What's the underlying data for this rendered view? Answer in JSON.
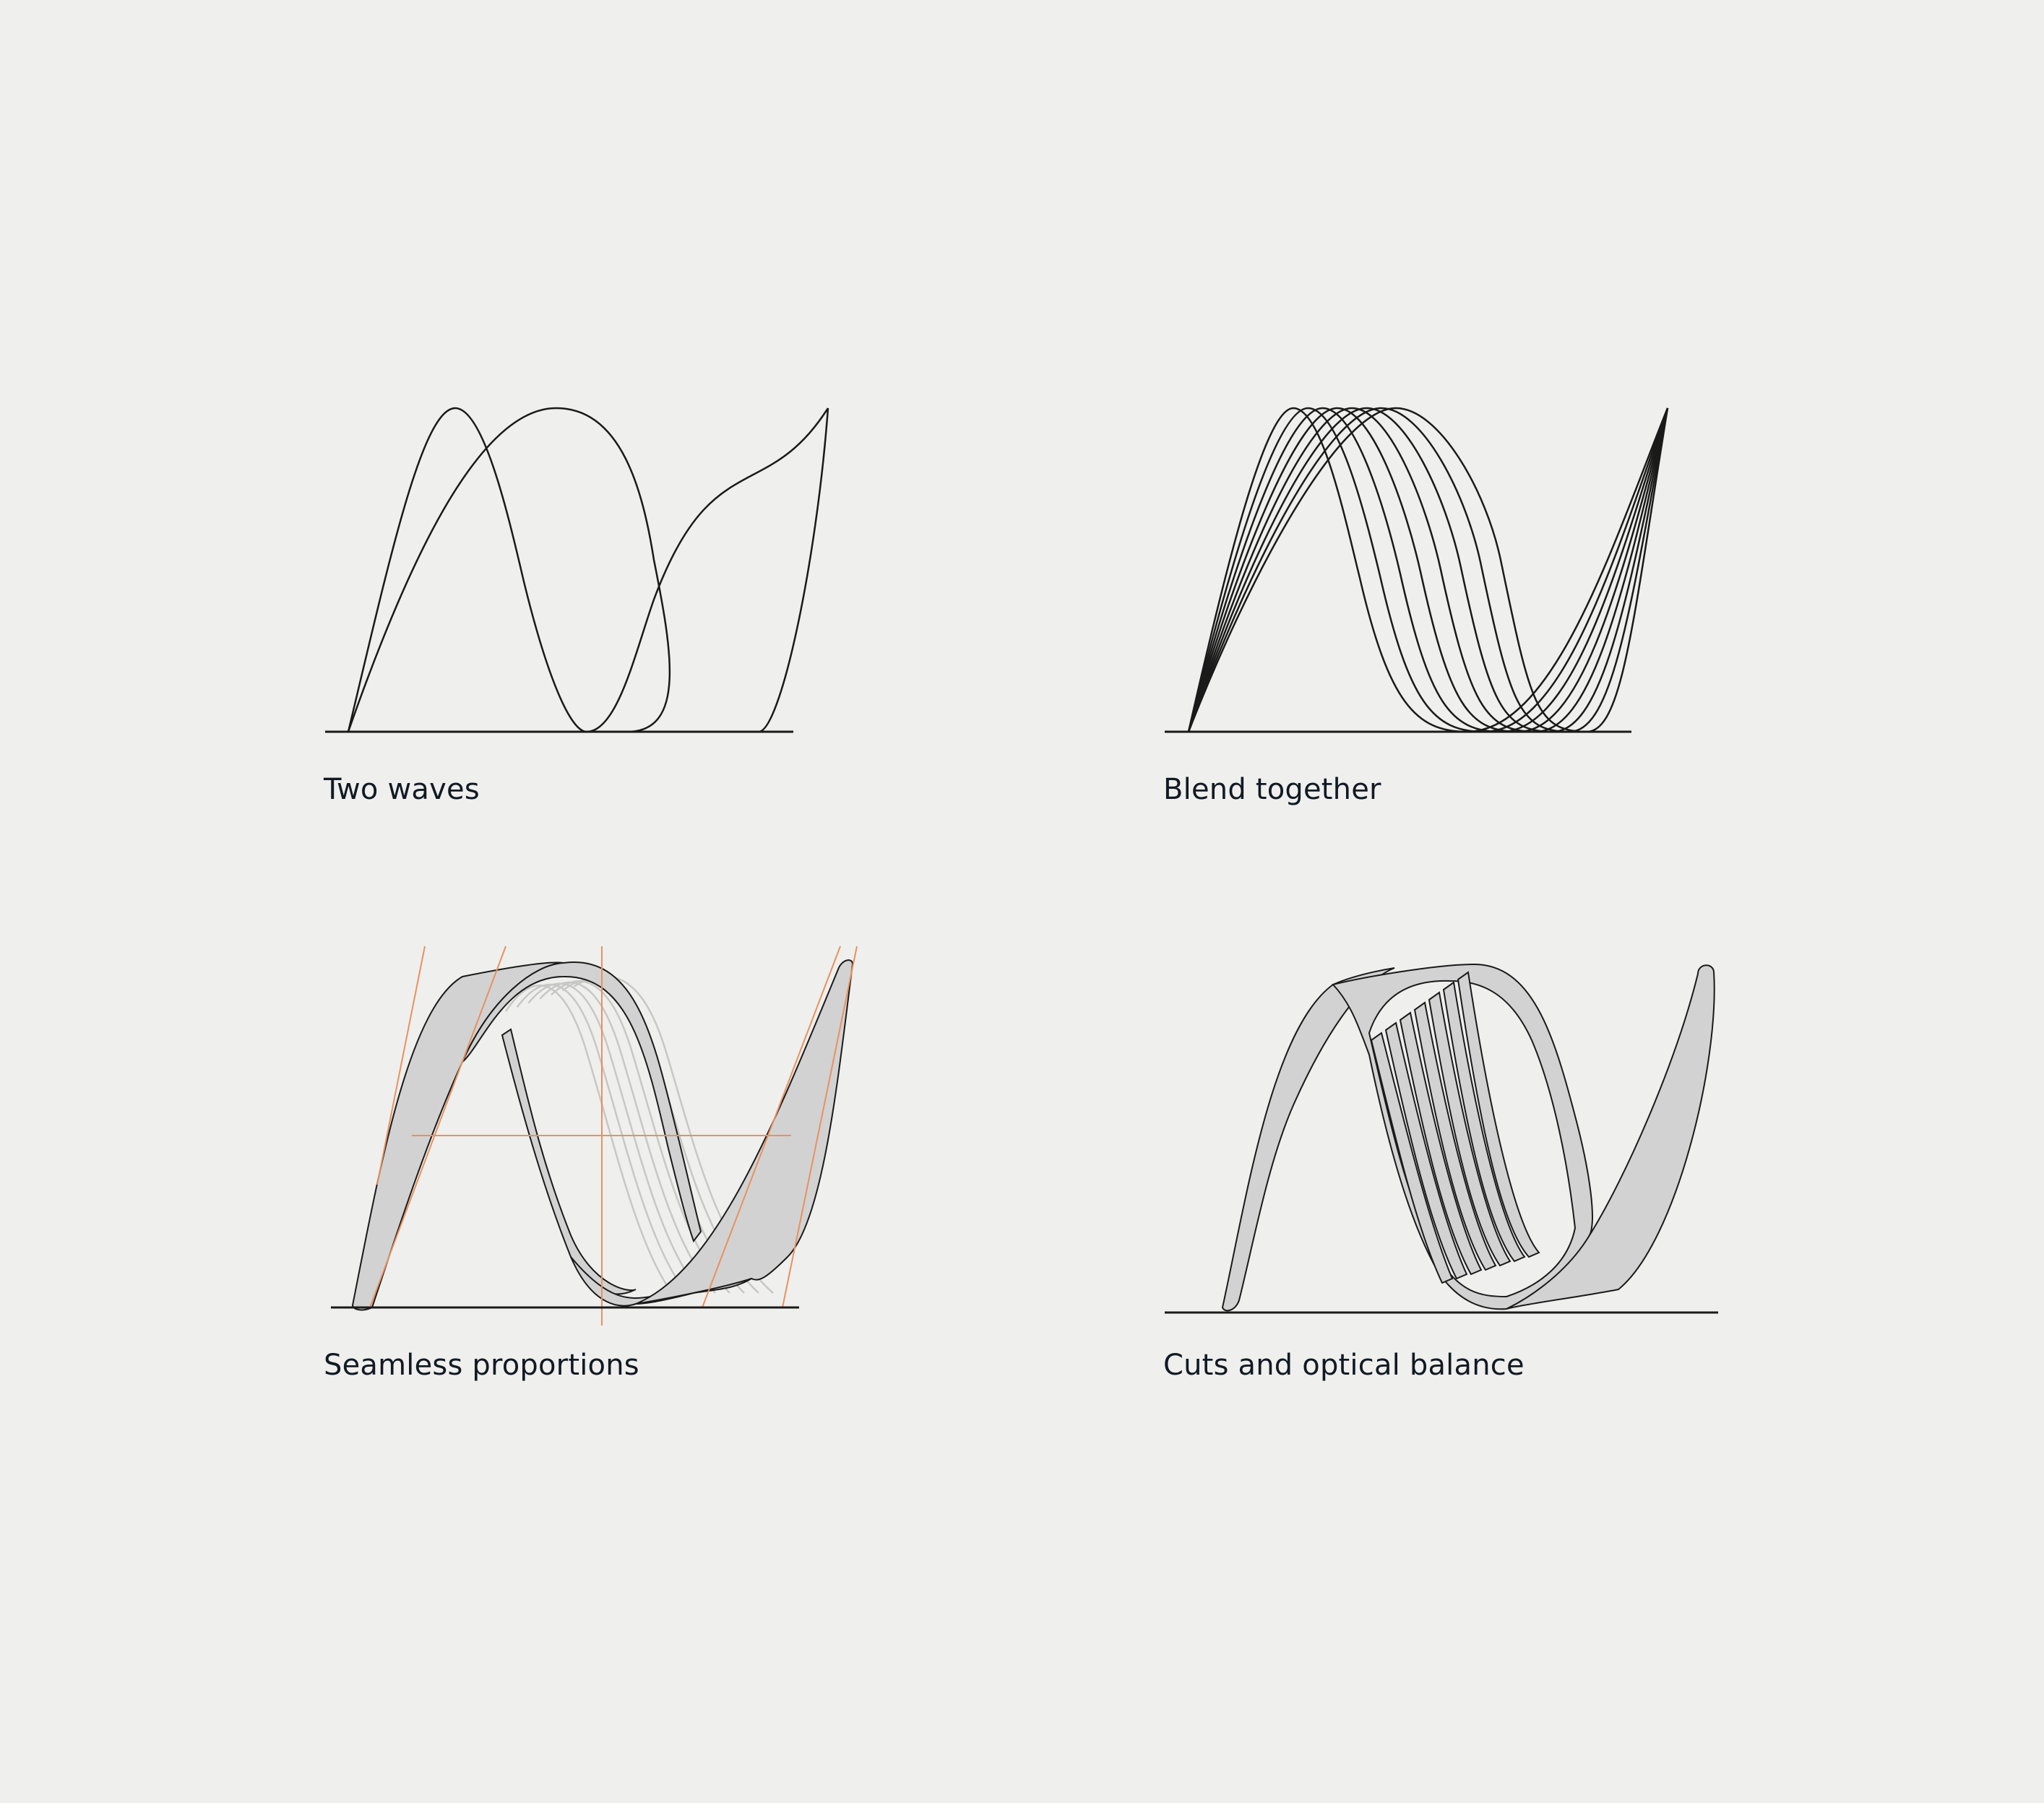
{
  "colors": {
    "background": "#efefed",
    "stroke": "#1a1a1a",
    "fill": "#d2d2d2",
    "guide": "#e8915f",
    "ghost": "#c7c7c5"
  },
  "panels": [
    {
      "caption": "Two waves"
    },
    {
      "caption": "Blend together"
    },
    {
      "caption": "Seamless proportions"
    },
    {
      "caption": "Cuts and optical balance"
    }
  ]
}
